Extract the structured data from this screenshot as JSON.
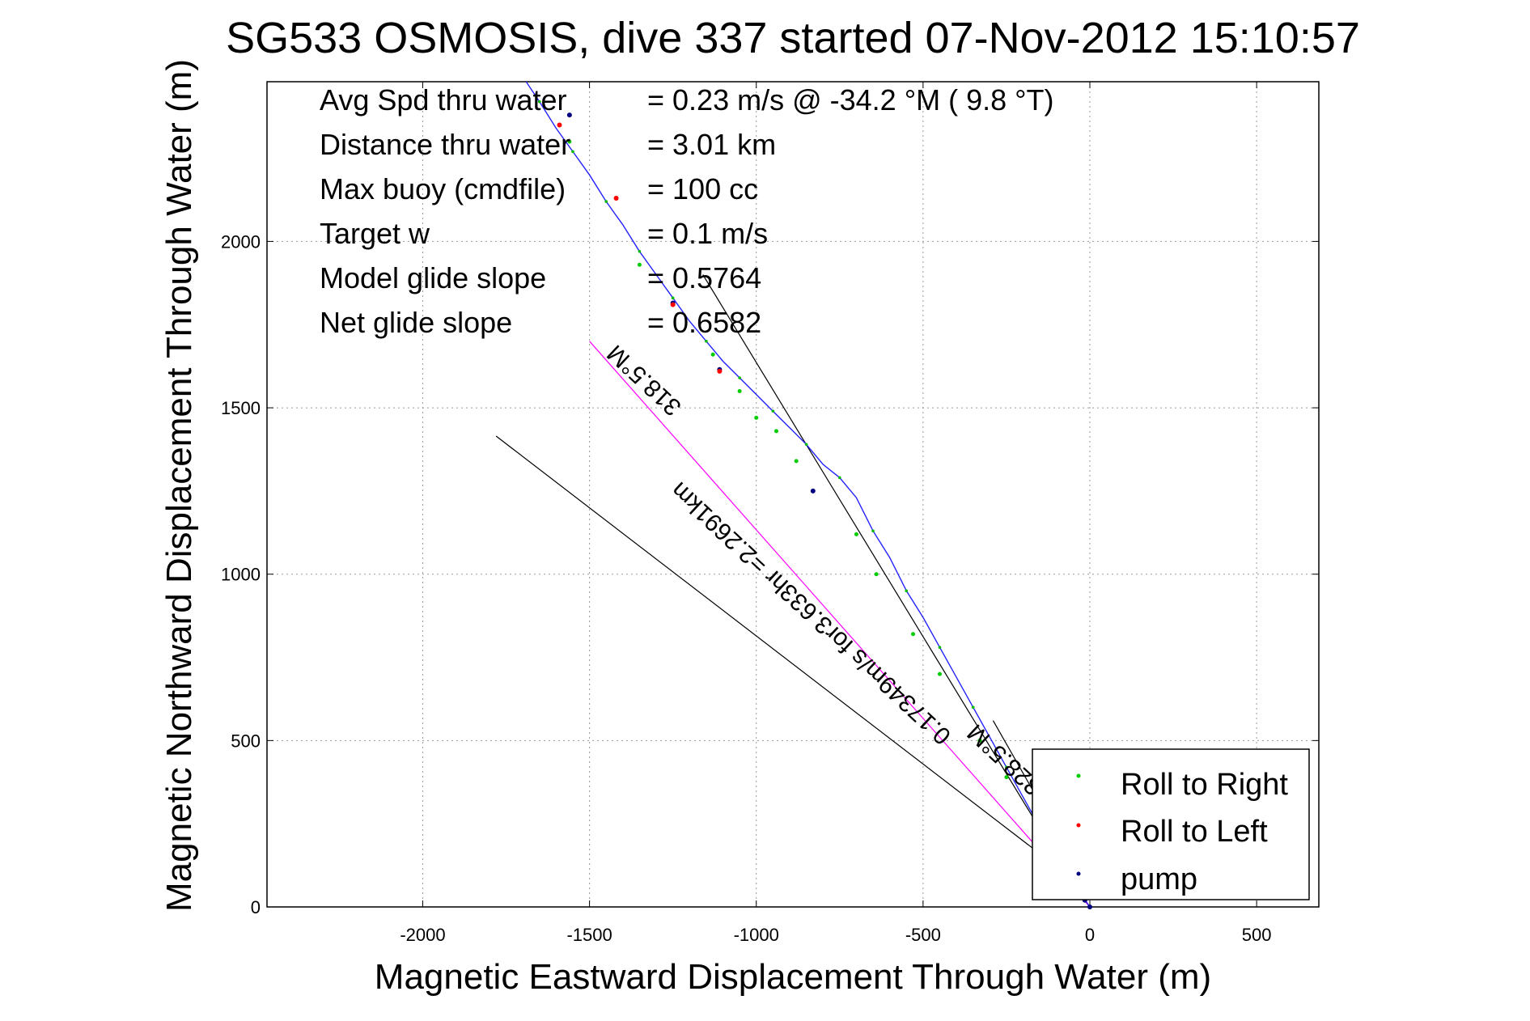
{
  "chart_data": {
    "type": "scatter",
    "title": "SG533 OSMOSIS, dive 337 started 07-Nov-2012 15:10:57",
    "xlabel": "Magnetic Eastward Displacement Through Water (m)",
    "ylabel": "Magnetic Northward Displacement Through Water (m)",
    "xlim": [
      -2500,
      650
    ],
    "ylim": [
      0,
      2480
    ],
    "x_ticks": [
      -2000,
      -1500,
      -1000,
      -500,
      0,
      500
    ],
    "y_ticks": [
      0,
      500,
      1000,
      1500,
      2000
    ],
    "grid": true,
    "legend_position": "bottom-right",
    "info": [
      {
        "label": "Avg Spd thru water",
        "value": "=  0.23 m/s @ -34.2 °M (  9.8 °T)"
      },
      {
        "label": "Distance thru water",
        "value": "=  3.01 km"
      },
      {
        "label": "Max buoy (cmdfile)",
        "value": "= 100 cc"
      },
      {
        "label": "Target w",
        "value": "= 0.1 m/s"
      },
      {
        "label": "Model glide slope",
        "value": "= 0.5764"
      },
      {
        "label": "Net glide slope",
        "value": "= 0.6582"
      }
    ],
    "track": {
      "x": [
        0,
        -20,
        -60,
        -100,
        -150,
        -200,
        -250,
        -300,
        -350,
        -400,
        -450,
        -500,
        -550,
        -600,
        -650,
        -700,
        -750,
        -800,
        -850,
        -900,
        -950,
        -1000,
        -1050,
        -1100,
        -1150,
        -1200,
        -1250,
        -1300,
        -1350,
        -1400,
        -1450,
        -1500,
        -1550,
        -1600,
        -1650,
        -1690
      ],
      "y": [
        0,
        30,
        95,
        165,
        240,
        330,
        420,
        510,
        600,
        690,
        780,
        870,
        950,
        1050,
        1130,
        1230,
        1290,
        1330,
        1390,
        1440,
        1490,
        1540,
        1590,
        1640,
        1700,
        1760,
        1830,
        1900,
        1970,
        2050,
        2120,
        2200,
        2270,
        2340,
        2420,
        2480
      ]
    },
    "markers": {
      "pump": {
        "x": [
          0,
          -15,
          -830,
          -1110,
          -1250,
          -1560
        ],
        "y": [
          0,
          20,
          1250,
          1615,
          1815,
          2380
        ]
      },
      "roll_left": {
        "x": [
          -1250,
          -1420,
          -1110,
          -1590
        ],
        "y": [
          1810,
          2130,
          1610,
          2350
        ]
      },
      "roll_right": {
        "x": [
          -40,
          -100,
          -150,
          -250,
          -330,
          -450,
          -530,
          -640,
          -700,
          -880,
          -940,
          -1000,
          -1050,
          -1130,
          -1350,
          -1560
        ],
        "y": [
          65,
          140,
          210,
          390,
          500,
          700,
          820,
          1000,
          1120,
          1340,
          1430,
          1470,
          1550,
          1660,
          1930,
          2300
        ]
      }
    },
    "lines": [
      {
        "name": "glide_line",
        "x": [
          -1160,
          -80
        ],
        "y": [
          1900,
          120
        ],
        "color": "#000000"
      },
      {
        "name": "heading_318",
        "x": [
          -1500,
          0
        ],
        "y": [
          1700,
          0
        ],
        "color": "#ff00ff"
      },
      {
        "name": "mean_heading",
        "x": [
          -1780,
          -150
        ],
        "y": [
          1415,
          160
        ],
        "color": "#000000"
      },
      {
        "name": "short_line",
        "x": [
          -290,
          -40
        ],
        "y": [
          560,
          120
        ],
        "color": "#000000"
      }
    ],
    "annotations": [
      {
        "text": "318.5°M",
        "x": -1320,
        "y": 1600,
        "angle": 43
      },
      {
        "text": "0.17349m/s for3.633hr =2.2691km",
        "x": -820,
        "y": 900,
        "angle": 43
      },
      {
        "text": "328.5°M",
        "x": -240,
        "y": 460,
        "angle": 43
      }
    ],
    "legend": [
      {
        "label": "Roll to Right",
        "color": "#00cc00"
      },
      {
        "label": "Roll to Left",
        "color": "#ff0000"
      },
      {
        "label": "pump",
        "color": "#000080"
      }
    ]
  }
}
